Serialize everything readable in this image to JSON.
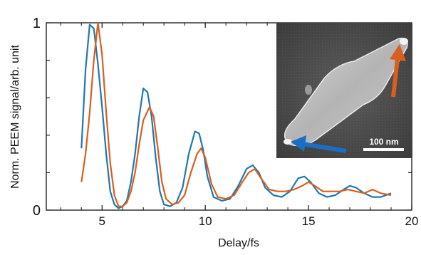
{
  "chart_data": {
    "type": "line",
    "xlabel": "Delay/fs",
    "ylabel": "Norm. PEEM signal/arb. unit",
    "xlim": [
      2.3,
      20
    ],
    "ylim": [
      0,
      1
    ],
    "x_ticks": [
      5,
      10,
      15,
      20
    ],
    "x_tick_labels": [
      "5",
      "10",
      "15",
      "20"
    ],
    "y_ticks": [
      0,
      1
    ],
    "y_tick_labels": [
      "0",
      "1"
    ],
    "grid": false,
    "series": [
      {
        "color": "#1f77b4",
        "points": [
          [
            4.0,
            0.33
          ],
          [
            4.2,
            0.75
          ],
          [
            4.4,
            0.99
          ],
          [
            4.6,
            0.97
          ],
          [
            4.8,
            0.78
          ],
          [
            5.0,
            0.55
          ],
          [
            5.2,
            0.3
          ],
          [
            5.4,
            0.1
          ],
          [
            5.6,
            0.03
          ],
          [
            5.8,
            0.01
          ],
          [
            6.0,
            0.02
          ],
          [
            6.2,
            0.05
          ],
          [
            6.4,
            0.15
          ],
          [
            6.6,
            0.3
          ],
          [
            6.8,
            0.5
          ],
          [
            7.0,
            0.65
          ],
          [
            7.2,
            0.63
          ],
          [
            7.4,
            0.5
          ],
          [
            7.6,
            0.28
          ],
          [
            7.8,
            0.1
          ],
          [
            8.0,
            0.03
          ],
          [
            8.3,
            0.02
          ],
          [
            8.6,
            0.04
          ],
          [
            8.9,
            0.12
          ],
          [
            9.2,
            0.3
          ],
          [
            9.5,
            0.42
          ],
          [
            9.7,
            0.41
          ],
          [
            9.9,
            0.32
          ],
          [
            10.1,
            0.18
          ],
          [
            10.4,
            0.07
          ],
          [
            10.8,
            0.05
          ],
          [
            11.2,
            0.06
          ],
          [
            11.6,
            0.13
          ],
          [
            12.0,
            0.22
          ],
          [
            12.3,
            0.24
          ],
          [
            12.6,
            0.2
          ],
          [
            12.9,
            0.12
          ],
          [
            13.3,
            0.08
          ],
          [
            13.7,
            0.07
          ],
          [
            14.1,
            0.1
          ],
          [
            14.5,
            0.17
          ],
          [
            14.8,
            0.18
          ],
          [
            15.1,
            0.15
          ],
          [
            15.5,
            0.09
          ],
          [
            15.9,
            0.07
          ],
          [
            16.3,
            0.08
          ],
          [
            16.7,
            0.11
          ],
          [
            17.0,
            0.13
          ],
          [
            17.3,
            0.12
          ],
          [
            17.7,
            0.09
          ],
          [
            18.1,
            0.07
          ],
          [
            18.5,
            0.07
          ],
          [
            19.0,
            0.09
          ]
        ]
      },
      {
        "color": "#d95f1e",
        "points": [
          [
            4.0,
            0.15
          ],
          [
            4.2,
            0.3
          ],
          [
            4.4,
            0.52
          ],
          [
            4.6,
            0.8
          ],
          [
            4.8,
            1.0
          ],
          [
            5.0,
            0.83
          ],
          [
            5.2,
            0.52
          ],
          [
            5.4,
            0.25
          ],
          [
            5.6,
            0.08
          ],
          [
            5.8,
            0.02
          ],
          [
            6.0,
            0.02
          ],
          [
            6.2,
            0.04
          ],
          [
            6.4,
            0.1
          ],
          [
            6.6,
            0.2
          ],
          [
            6.8,
            0.35
          ],
          [
            7.0,
            0.48
          ],
          [
            7.3,
            0.55
          ],
          [
            7.5,
            0.5
          ],
          [
            7.7,
            0.33
          ],
          [
            7.9,
            0.15
          ],
          [
            8.1,
            0.06
          ],
          [
            8.4,
            0.03
          ],
          [
            8.7,
            0.04
          ],
          [
            9.0,
            0.08
          ],
          [
            9.3,
            0.2
          ],
          [
            9.6,
            0.3
          ],
          [
            9.8,
            0.33
          ],
          [
            10.0,
            0.28
          ],
          [
            10.3,
            0.14
          ],
          [
            10.6,
            0.07
          ],
          [
            11.0,
            0.06
          ],
          [
            11.4,
            0.08
          ],
          [
            11.8,
            0.15
          ],
          [
            12.1,
            0.2
          ],
          [
            12.4,
            0.22
          ],
          [
            12.7,
            0.17
          ],
          [
            13.1,
            0.11
          ],
          [
            13.5,
            0.1
          ],
          [
            13.9,
            0.1
          ],
          [
            14.3,
            0.11
          ],
          [
            14.7,
            0.13
          ],
          [
            15.0,
            0.15
          ],
          [
            15.3,
            0.13
          ],
          [
            15.7,
            0.1
          ],
          [
            16.1,
            0.1
          ],
          [
            16.5,
            0.1
          ],
          [
            16.9,
            0.11
          ],
          [
            17.3,
            0.1
          ],
          [
            17.7,
            0.09
          ],
          [
            18.1,
            0.11
          ],
          [
            18.5,
            0.09
          ],
          [
            19.0,
            0.08
          ]
        ]
      }
    ]
  },
  "inset": {
    "scale_bar_label": "100 nm",
    "arrow_colors": [
      "#1a6fc2",
      "#d95f1e"
    ]
  }
}
